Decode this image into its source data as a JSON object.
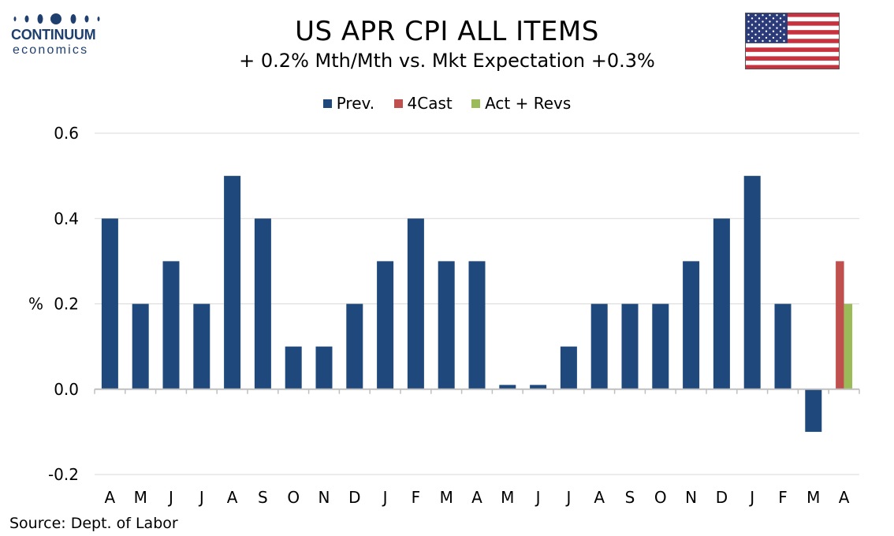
{
  "logo": {
    "name": "CONTINUUM",
    "sub": "economics"
  },
  "header": {
    "title": "US APR CPI ALL ITEMS",
    "subtitle": "+ 0.2% Mth/Mth  vs. Mkt Expectation +0.3%"
  },
  "source": "Source: Dept. of Labor",
  "colors": {
    "prev": "#1f497d",
    "forecast": "#c0504d",
    "actual": "#9bbb59",
    "logo": "#1f3f6e"
  },
  "chart_data": {
    "type": "bar",
    "categories": [
      "A",
      "M",
      "J",
      "J",
      "A",
      "S",
      "O",
      "N",
      "D",
      "J",
      "F",
      "M",
      "A",
      "M",
      "J",
      "J",
      "A",
      "S",
      "O",
      "N",
      "D",
      "J",
      "F",
      "M",
      "A"
    ],
    "series": [
      {
        "name": "Prev.",
        "values": [
          0.4,
          0.2,
          0.3,
          0.2,
          0.5,
          0.4,
          0.1,
          0.1,
          0.2,
          0.3,
          0.4,
          0.3,
          0.3,
          0.01,
          0.01,
          0.1,
          0.2,
          0.2,
          0.2,
          0.3,
          0.4,
          0.5,
          0.2,
          -0.1,
          null
        ]
      },
      {
        "name": "4Cast",
        "values": [
          null,
          null,
          null,
          null,
          null,
          null,
          null,
          null,
          null,
          null,
          null,
          null,
          null,
          null,
          null,
          null,
          null,
          null,
          null,
          null,
          null,
          null,
          null,
          null,
          0.3
        ]
      },
      {
        "name": "Act + Revs",
        "values": [
          null,
          null,
          null,
          null,
          null,
          null,
          null,
          null,
          null,
          null,
          null,
          null,
          null,
          null,
          null,
          null,
          null,
          null,
          null,
          null,
          null,
          null,
          null,
          null,
          0.2
        ]
      }
    ],
    "ylabel": "%",
    "ylim": [
      -0.2,
      0.6
    ],
    "yticks": [
      0.6,
      0.4,
      0.2,
      0.0,
      -0.2
    ],
    "ytick_labels": [
      "0.6",
      "0.4",
      "0.2",
      "0.0",
      "-0.2"
    ],
    "grid": true,
    "legend": "top-center"
  }
}
